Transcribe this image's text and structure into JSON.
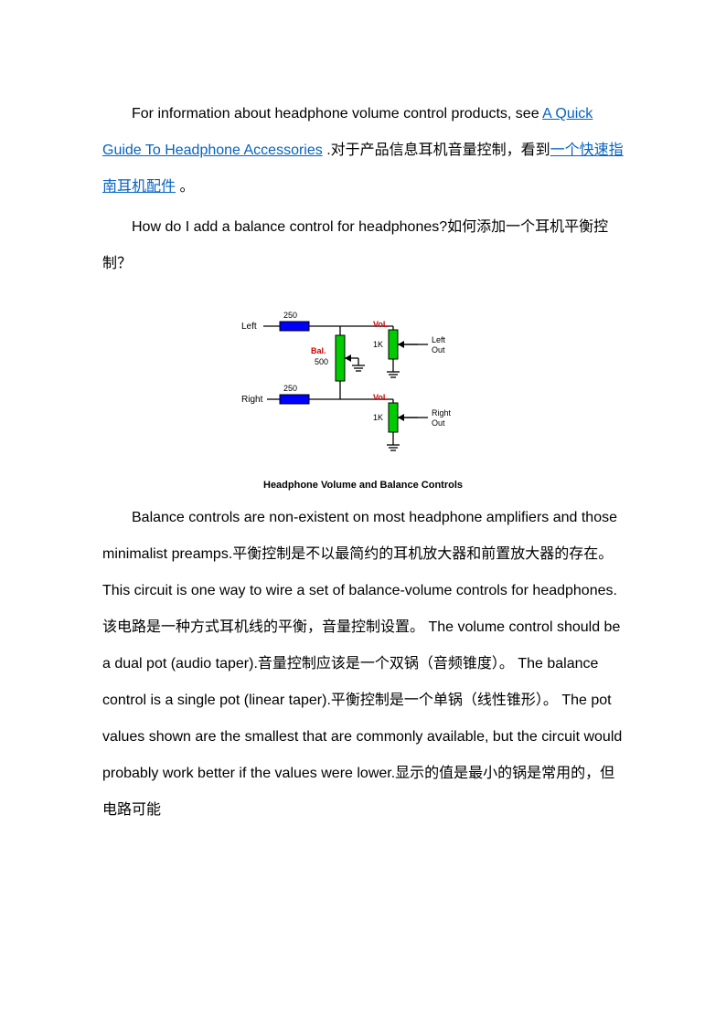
{
  "para1": {
    "t1": "For information about headphone volume control products, see ",
    "link1": "A Quick Guide To Headphone Accessories",
    "t2": " .对于产品信息耳机音量控制，看到",
    "link2": "一个快速指南耳机配件",
    "t3": " 。"
  },
  "para2": {
    "text": "How do I add a balance control for headphones?如何添加一个耳机平衡控制？"
  },
  "diagram": {
    "caption": "Headphone Volume and Balance Controls",
    "labels": {
      "left": "Left",
      "right": "Right",
      "leftOut": "Left\nOut",
      "rightOut": "Right\nOut",
      "r250a": "250",
      "r250b": "250",
      "bal": "Bal.",
      "balVal": "500",
      "vol1": "Vol.",
      "vol1Val": "1K",
      "vol2": "Vol.",
      "vol2Val": "1K"
    },
    "colors": {
      "resistor": "#0000ff",
      "pot": "#00cc00",
      "wire": "#000000",
      "redText": "#cc0000",
      "text": "#000000"
    }
  },
  "para3": {
    "text": "Balance controls are non-existent on most headphone amplifiers and those minimalist preamps.平衡控制是不以最简约的耳机放大器和前置放大器的存在。 This circuit is one way to wire a set of balance-volume controls for headphones.该电路是一种方式耳机线的平衡，音量控制设置。 The volume control should be a dual pot (audio taper).音量控制应该是一个双锅（音频锥度）。 The balance control is a single pot (linear taper).平衡控制是一个单锅（线性锥形）。 The pot values shown are the smallest that are commonly available, but the circuit would probably work better if the values were lower.显示的值是最小的锅是常用的，但电路可能"
  }
}
